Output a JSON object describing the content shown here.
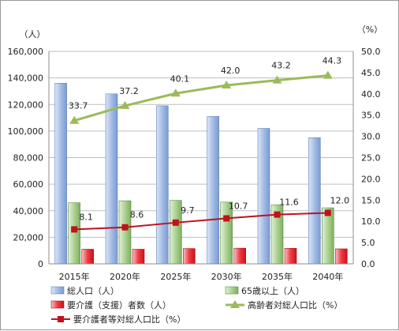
{
  "chart_data": {
    "type": "bar",
    "categories": [
      "2015年",
      "2020年",
      "2025年",
      "2030年",
      "2035年",
      "2040年"
    ],
    "y_left": {
      "unit": "（人）",
      "range": [
        0,
        160000
      ],
      "ticks": [
        "0",
        "20,000",
        "40,000",
        "60,000",
        "80,000",
        "100,000",
        "120,000",
        "140,000",
        "160,000"
      ]
    },
    "y_right": {
      "unit": "（%）",
      "range": [
        0,
        50
      ],
      "ticks": [
        "0.0",
        "5.0",
        "10.0",
        "15.0",
        "20.0",
        "25.0",
        "30.0",
        "35.0",
        "40.0",
        "45.0",
        "50.0"
      ]
    },
    "grid": true,
    "legend_position": "bottom",
    "series": [
      {
        "name": "総人口（人）",
        "kind": "bar",
        "axis": "left",
        "color": "#8eaadb",
        "values": [
          136000,
          128000,
          119000,
          111000,
          102000,
          95000
        ]
      },
      {
        "name": "65歳以上（人）",
        "kind": "bar",
        "axis": "left",
        "color": "#8fc07a",
        "values": [
          46000,
          47500,
          47800,
          46500,
          44500,
          42200
        ]
      },
      {
        "name": "要介護（支援）者数（人）",
        "kind": "bar",
        "axis": "left",
        "color": "#e8202a",
        "values": [
          11000,
          11000,
          11500,
          11800,
          11700,
          11300
        ]
      },
      {
        "name": "高齢者対総人口比（%）",
        "kind": "line",
        "axis": "right",
        "color": "#9bbb59",
        "values": [
          33.7,
          37.2,
          40.1,
          42.0,
          43.2,
          44.3
        ],
        "labels": [
          "33.7",
          "37.2",
          "40.1",
          "42.0",
          "43.2",
          "44.3"
        ]
      },
      {
        "name": "要介護者等対総人口比（%）",
        "kind": "line",
        "axis": "right",
        "color": "#c0111f",
        "values": [
          8.1,
          8.6,
          9.7,
          10.7,
          11.6,
          12.0
        ],
        "labels": [
          "8.1",
          "8.6",
          "9.7",
          "10.7",
          "11.6",
          "12.0"
        ]
      }
    ]
  }
}
